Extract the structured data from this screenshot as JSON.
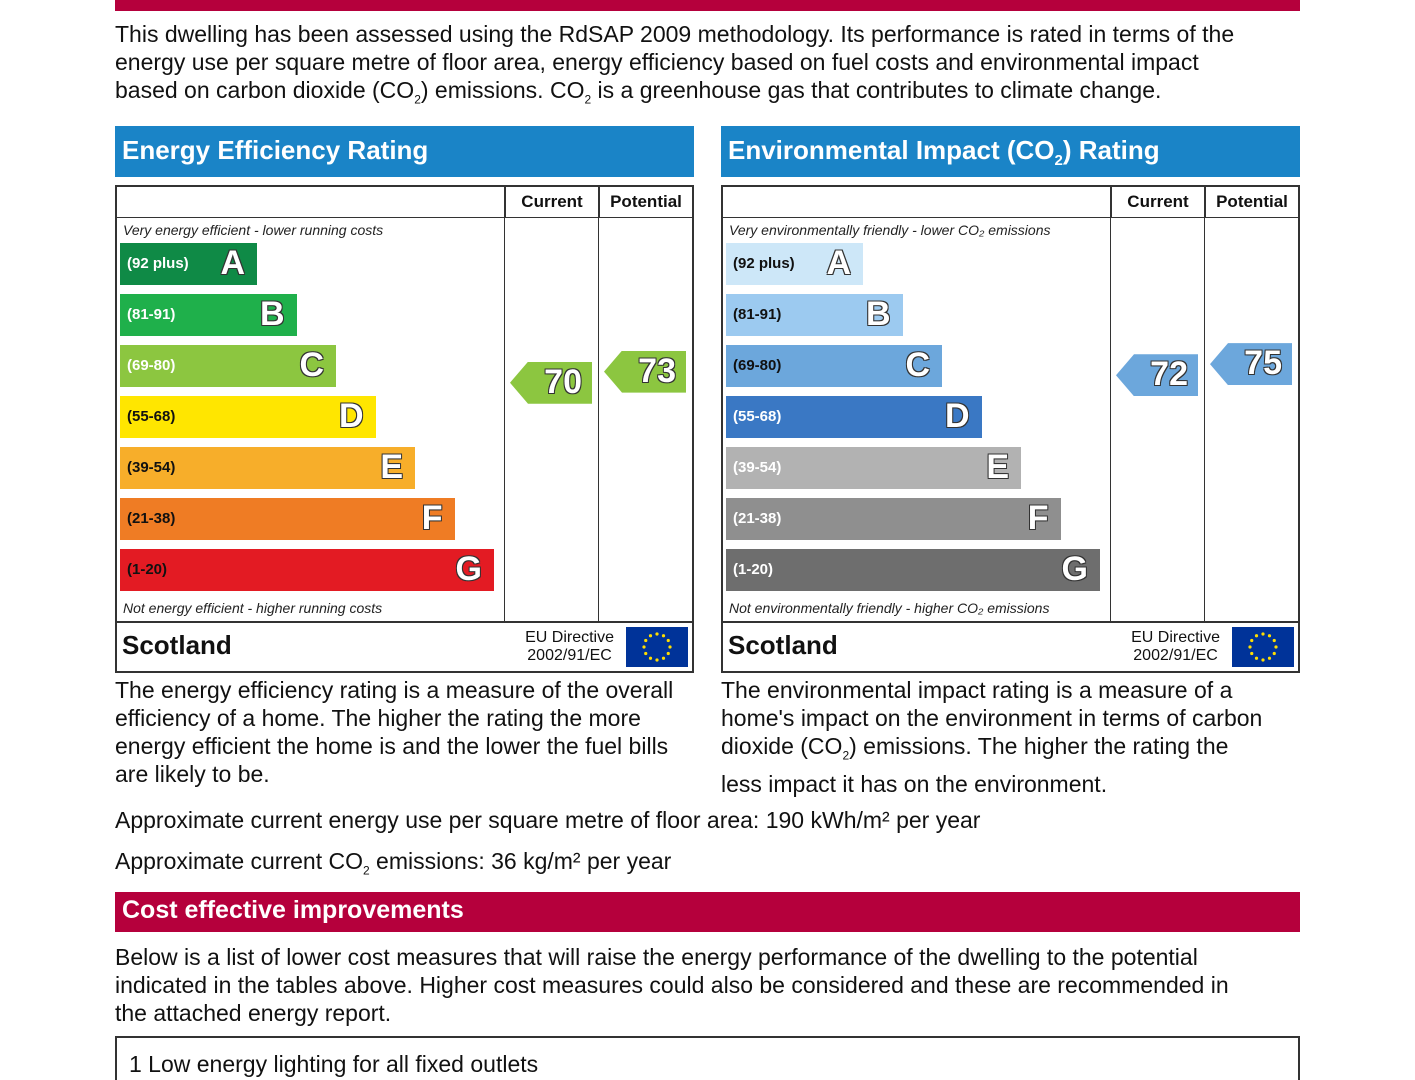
{
  "intro": {
    "line1": "This dwelling has been assessed using the RdSAP 2009 methodology. Its performance is rated in terms of the",
    "line2": "energy use per square metre of floor area, energy efficiency based on fuel costs and environmental impact",
    "line3_a": "based on carbon dioxide (CO",
    "line3_b": ") emissions. CO",
    "line3_c": " is a greenhouse gas that contributes to climate change.",
    "sub2": "2"
  },
  "energy": {
    "title": "Energy Efficiency Rating",
    "col_current": "Current",
    "col_potential": "Potential",
    "note_top": "Very energy efficient - lower running costs",
    "note_bottom": "Not energy efficient - higher running costs",
    "bands": [
      {
        "range": "(92 plus)",
        "letter": "A",
        "color": "#0f8a46"
      },
      {
        "range": "(81-91)",
        "letter": "B",
        "color": "#1fb04b"
      },
      {
        "range": "(69-80)",
        "letter": "C",
        "color": "#8cc640"
      },
      {
        "range": "(55-68)",
        "letter": "D",
        "color": "#ffe600"
      },
      {
        "range": "(39-54)",
        "letter": "E",
        "color": "#f7ae2a"
      },
      {
        "range": "(21-38)",
        "letter": "F",
        "color": "#ef7c24"
      },
      {
        "range": "(1-20)",
        "letter": "G",
        "color": "#e31b23"
      }
    ],
    "current": 70,
    "potential": 73,
    "current_color": "#8cc640",
    "potential_color": "#8cc640",
    "country": "Scotland",
    "directive_line1": "EU Directive",
    "directive_line2": "2002/91/EC"
  },
  "environment": {
    "title_a": "Environmental Impact (CO",
    "title_sub": "2",
    "title_b": ") Rating",
    "col_current": "Current",
    "col_potential": "Potential",
    "note_top": "Very environmentally friendly - lower CO₂ emissions",
    "note_bottom": "Not environmentally friendly - higher CO₂ emissions",
    "bands": [
      {
        "range": "(92 plus)",
        "letter": "A",
        "color": "#cde7f8"
      },
      {
        "range": "(81-91)",
        "letter": "B",
        "color": "#9ccaf0"
      },
      {
        "range": "(69-80)",
        "letter": "C",
        "color": "#6ca7dc"
      },
      {
        "range": "(55-68)",
        "letter": "D",
        "color": "#3a78c4"
      },
      {
        "range": "(39-54)",
        "letter": "E",
        "color": "#b2b2b2"
      },
      {
        "range": "(21-38)",
        "letter": "F",
        "color": "#8f8f8f"
      },
      {
        "range": "(1-20)",
        "letter": "G",
        "color": "#6e6e6e"
      }
    ],
    "current": 72,
    "potential": 75,
    "current_color": "#6ca7dc",
    "potential_color": "#6ca7dc",
    "country": "Scotland",
    "directive_line1": "EU Directive",
    "directive_line2": "2002/91/EC"
  },
  "desc_left": [
    "The energy efficiency rating is a measure of the overall",
    "efficiency of a home. The higher the rating the more",
    "energy efficient the home is and the lower the fuel bills",
    "are likely to be."
  ],
  "desc_right": {
    "line1": "The environmental impact rating is a measure of a",
    "line2": "home's impact on the environment in terms of carbon",
    "line3_a": "dioxide (CO",
    "line3_sub": "2",
    "line3_b": ") emissions. The higher the rating the",
    "line4": "less impact it has on the environment."
  },
  "approx": {
    "energy_use": "Approximate current energy use per square metre of floor area: 190 kWh/m² per year",
    "co2_a": "Approximate current CO",
    "co2_sub": "2",
    "co2_b": " emissions: 36 kg/m² per year"
  },
  "improvements": {
    "title": "Cost effective improvements",
    "line1": "Below is a list of lower cost measures that will raise the energy performance of the dwelling to the potential",
    "line2": "indicated in the tables above. Higher cost measures could also be considered and these are recommended in",
    "line3": "the attached energy report.",
    "first_item": "1 Low energy lighting for all fixed outlets"
  }
}
